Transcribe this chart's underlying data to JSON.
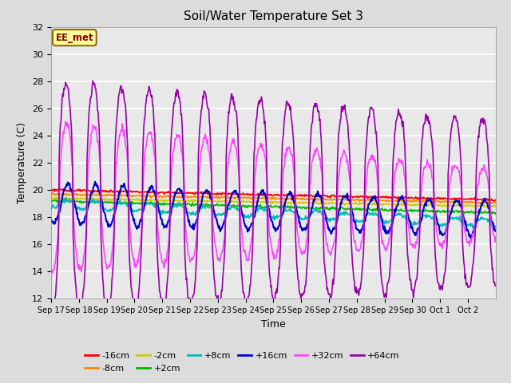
{
  "title": "Soil/Water Temperature Set 3",
  "xlabel": "Time",
  "ylabel": "Temperature (C)",
  "ylim": [
    12,
    32
  ],
  "yticks": [
    12,
    14,
    16,
    18,
    20,
    22,
    24,
    26,
    28,
    30,
    32
  ],
  "background_color": "#dcdcdc",
  "plot_bg_color": "#e8e8e8",
  "annotation_text": "EE_met",
  "annotation_bg": "#ffff99",
  "annotation_border": "#8B6914",
  "series_order": [
    "-16cm",
    "-8cm",
    "-2cm",
    "+2cm",
    "+8cm",
    "+16cm",
    "+32cm",
    "+64cm"
  ],
  "series": {
    "-16cm": {
      "color": "#ff0000",
      "lw": 1.2
    },
    "-8cm": {
      "color": "#ff8800",
      "lw": 1.2
    },
    "-2cm": {
      "color": "#cccc00",
      "lw": 1.2
    },
    "+2cm": {
      "color": "#00bb00",
      "lw": 1.2
    },
    "+8cm": {
      "color": "#00bbbb",
      "lw": 1.2
    },
    "+16cm": {
      "color": "#0000cc",
      "lw": 1.5
    },
    "+32cm": {
      "color": "#ff44ff",
      "lw": 1.2
    },
    "+64cm": {
      "color": "#9900aa",
      "lw": 1.2
    }
  },
  "n_days": 16,
  "xtick_labels": [
    "Sep 17",
    "Sep 18",
    "Sep 19",
    "Sep 20",
    "Sep 21",
    "Sep 22",
    "Sep 23",
    "Sep 24",
    "Sep 25",
    "Sep 26",
    "Sep 27",
    "Sep 28",
    "Sep 29",
    "Sep 30",
    "Oct 1",
    "Oct 2"
  ]
}
